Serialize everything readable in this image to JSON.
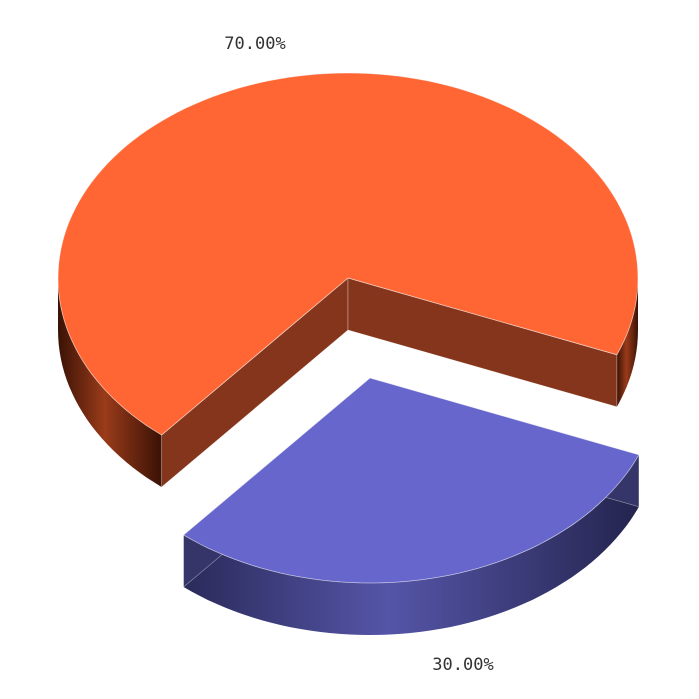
{
  "chart_data": {
    "type": "pie",
    "title": "",
    "slices": [
      {
        "label": "70.00%",
        "value": 70,
        "color": "#ff6633",
        "exploded": false
      },
      {
        "label": "30.00%",
        "value": 30,
        "color": "#6666cc",
        "exploded": true
      }
    ],
    "style": "3d",
    "legend": "none"
  }
}
